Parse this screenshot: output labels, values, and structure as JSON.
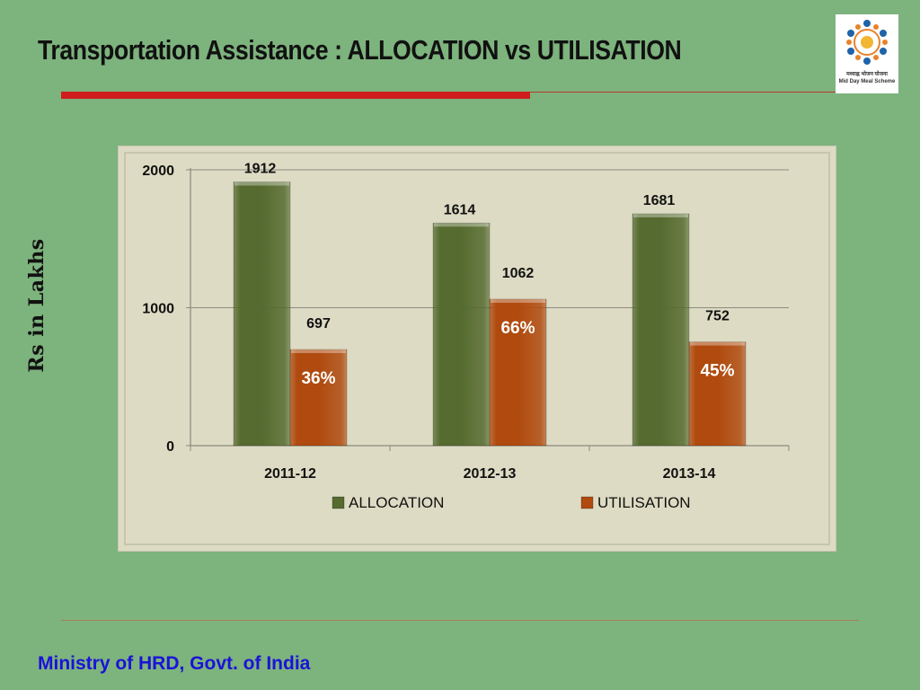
{
  "slide": {
    "title": "Transportation Assistance : ALLOCATION vs UTILISATION",
    "footer": "Ministry of HRD, Govt. of India",
    "logo": {
      "caption_hindi": "मध्याह्न भोजन योजना",
      "caption_english": "Mid Day Meal Scheme"
    }
  },
  "colors": {
    "background": "#7db37d",
    "accent_rule": "#d01e1e",
    "allocation": "#556b2f",
    "utilisation": "#b04a0e",
    "footer_text": "#1a12d9"
  },
  "chart_data": {
    "type": "bar",
    "title": "",
    "ylabel": "Rs in Lakhs",
    "xlabel": "",
    "ylim": [
      0,
      2000
    ],
    "yticks": [
      0,
      1000,
      2000
    ],
    "categories": [
      "2011-12",
      "2012-13",
      "2013-14"
    ],
    "series": [
      {
        "name": "ALLOCATION",
        "values": [
          1912,
          1614,
          1681
        ],
        "color": "#556b2f"
      },
      {
        "name": "UTILISATION",
        "values": [
          697,
          1062,
          752
        ],
        "color": "#b04a0e"
      }
    ],
    "annotations": [
      "36%",
      "66%",
      "45%"
    ],
    "legend": "bottom",
    "grid": true
  }
}
